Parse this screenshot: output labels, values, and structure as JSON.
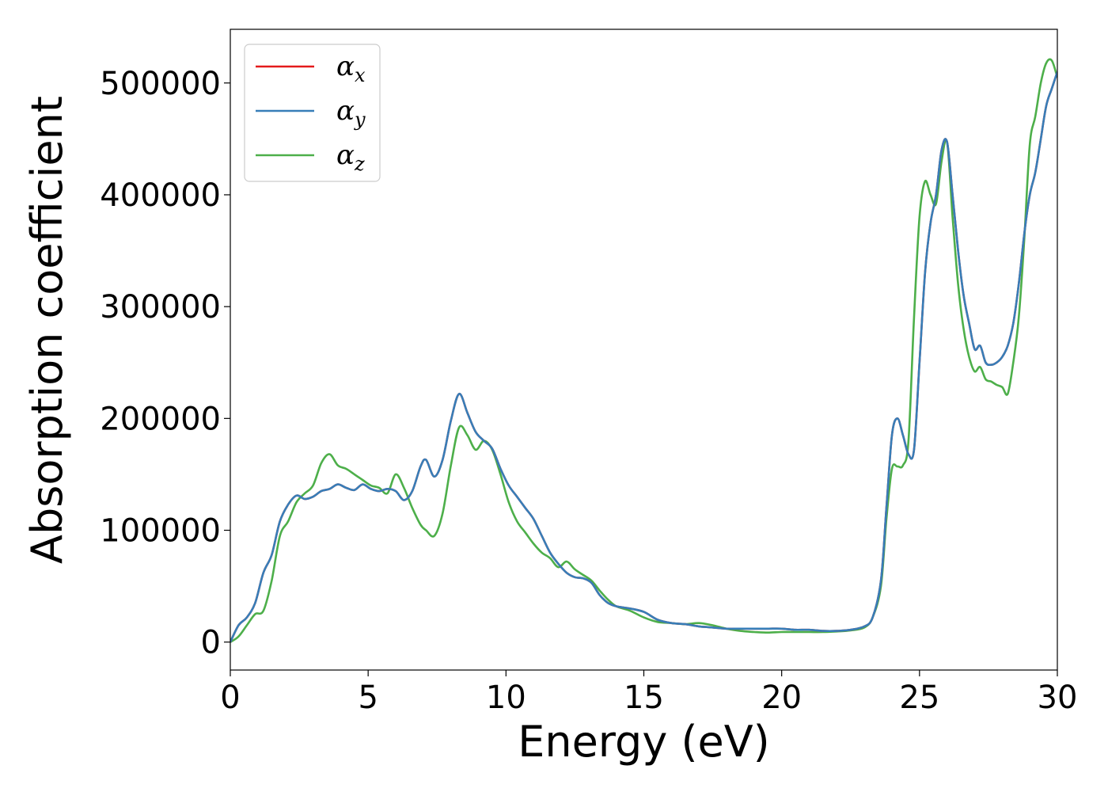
{
  "chart_data": {
    "type": "line",
    "title": "",
    "xlabel": "Energy (eV)",
    "ylabel": "Absorption coefficient",
    "xlim": [
      0,
      30
    ],
    "ylim": [
      -25000,
      548000
    ],
    "xticks": [
      0,
      5,
      10,
      15,
      20,
      25,
      30
    ],
    "yticks": [
      0,
      100000,
      200000,
      300000,
      400000,
      500000
    ],
    "grid": false,
    "legend_position": "top-left",
    "series": [
      {
        "name": "α",
        "subscript": "x",
        "color": "#e41a1c",
        "x": [
          0,
          0.3,
          0.6,
          0.9,
          1.2,
          1.5,
          1.8,
          2.1,
          2.4,
          2.7,
          3.0,
          3.3,
          3.6,
          3.9,
          4.2,
          4.5,
          4.8,
          5.1,
          5.4,
          5.7,
          6.0,
          6.3,
          6.6,
          6.9,
          7.1,
          7.4,
          7.7,
          8.0,
          8.3,
          8.6,
          8.9,
          9.2,
          9.5,
          9.8,
          10.1,
          10.4,
          10.7,
          11.0,
          11.3,
          11.6,
          11.9,
          12.2,
          12.5,
          12.8,
          13.1,
          13.4,
          13.7,
          14.0,
          14.5,
          15.0,
          15.5,
          16.0,
          16.5,
          17.0,
          17.5,
          18.0,
          18.5,
          19.0,
          19.5,
          20.0,
          20.5,
          21.0,
          21.5,
          22.0,
          22.5,
          23.0,
          23.3,
          23.6,
          23.8,
          24.0,
          24.2,
          24.4,
          24.6,
          24.8,
          25.0,
          25.2,
          25.4,
          25.6,
          25.8,
          26.0,
          26.2,
          26.4,
          26.6,
          26.8,
          27.0,
          27.2,
          27.4,
          27.6,
          27.8,
          28.0,
          28.2,
          28.4,
          28.6,
          28.8,
          29.0,
          29.2,
          29.4,
          29.6,
          29.8,
          30.0
        ],
        "y": [
          0,
          15000,
          22000,
          35000,
          62000,
          78000,
          108000,
          123000,
          131000,
          128000,
          130000,
          135000,
          137000,
          141000,
          138000,
          136000,
          141000,
          137000,
          135000,
          137000,
          135000,
          127000,
          135000,
          157000,
          163000,
          148000,
          163000,
          198000,
          222000,
          205000,
          188000,
          180000,
          173000,
          155000,
          140000,
          130000,
          120000,
          110000,
          95000,
          80000,
          70000,
          62000,
          58000,
          57000,
          53000,
          42000,
          35000,
          32000,
          30000,
          27000,
          20000,
          17000,
          16000,
          14000,
          13000,
          12000,
          12000,
          12000,
          12000,
          12000,
          11000,
          11000,
          10000,
          10000,
          11000,
          14000,
          22000,
          55000,
          120000,
          185000,
          200000,
          185000,
          168000,
          172000,
          250000,
          330000,
          375000,
          400000,
          440000,
          447000,
          400000,
          350000,
          310000,
          285000,
          262000,
          265000,
          250000,
          248000,
          250000,
          255000,
          265000,
          285000,
          320000,
          365000,
          400000,
          420000,
          450000,
          480000,
          495000,
          510000
        ]
      },
      {
        "name": "α",
        "subscript": "y",
        "color": "#377eb8",
        "x": [
          0,
          0.3,
          0.6,
          0.9,
          1.2,
          1.5,
          1.8,
          2.1,
          2.4,
          2.7,
          3.0,
          3.3,
          3.6,
          3.9,
          4.2,
          4.5,
          4.8,
          5.1,
          5.4,
          5.7,
          6.0,
          6.3,
          6.6,
          6.9,
          7.1,
          7.4,
          7.7,
          8.0,
          8.3,
          8.6,
          8.9,
          9.2,
          9.5,
          9.8,
          10.1,
          10.4,
          10.7,
          11.0,
          11.3,
          11.6,
          11.9,
          12.2,
          12.5,
          12.8,
          13.1,
          13.4,
          13.7,
          14.0,
          14.5,
          15.0,
          15.5,
          16.0,
          16.5,
          17.0,
          17.5,
          18.0,
          18.5,
          19.0,
          19.5,
          20.0,
          20.5,
          21.0,
          21.5,
          22.0,
          22.5,
          23.0,
          23.3,
          23.6,
          23.8,
          24.0,
          24.2,
          24.4,
          24.6,
          24.8,
          25.0,
          25.2,
          25.4,
          25.6,
          25.8,
          26.0,
          26.2,
          26.4,
          26.6,
          26.8,
          27.0,
          27.2,
          27.4,
          27.6,
          27.8,
          28.0,
          28.2,
          28.4,
          28.6,
          28.8,
          29.0,
          29.2,
          29.4,
          29.6,
          29.8,
          30.0
        ],
        "y": [
          0,
          15000,
          22000,
          35000,
          62000,
          78000,
          108000,
          123000,
          131000,
          128000,
          130000,
          135000,
          137000,
          141000,
          138000,
          136000,
          141000,
          137000,
          135000,
          137000,
          135000,
          127000,
          135000,
          157000,
          163000,
          148000,
          163000,
          198000,
          222000,
          205000,
          188000,
          180000,
          173000,
          155000,
          140000,
          130000,
          120000,
          110000,
          95000,
          80000,
          70000,
          62000,
          58000,
          57000,
          53000,
          42000,
          35000,
          32000,
          30000,
          27000,
          20000,
          17000,
          16000,
          14000,
          13000,
          12000,
          12000,
          12000,
          12000,
          12000,
          11000,
          11000,
          10000,
          10000,
          11000,
          14000,
          22000,
          55000,
          120000,
          185000,
          200000,
          185000,
          168000,
          172000,
          250000,
          330000,
          375000,
          400000,
          440000,
          447000,
          400000,
          350000,
          310000,
          285000,
          262000,
          265000,
          250000,
          248000,
          250000,
          255000,
          265000,
          285000,
          320000,
          365000,
          400000,
          420000,
          450000,
          480000,
          495000,
          510000
        ]
      },
      {
        "name": "α",
        "subscript": "z",
        "color": "#4daf4a",
        "x": [
          0,
          0.3,
          0.6,
          0.9,
          1.2,
          1.5,
          1.8,
          2.1,
          2.4,
          2.7,
          3.0,
          3.3,
          3.6,
          3.9,
          4.2,
          4.5,
          4.8,
          5.1,
          5.4,
          5.7,
          6.0,
          6.3,
          6.6,
          6.9,
          7.1,
          7.4,
          7.7,
          8.0,
          8.3,
          8.6,
          8.9,
          9.2,
          9.5,
          9.8,
          10.1,
          10.4,
          10.7,
          11.0,
          11.3,
          11.6,
          11.9,
          12.2,
          12.5,
          12.8,
          13.1,
          13.4,
          13.7,
          14.0,
          14.5,
          15.0,
          15.5,
          16.0,
          16.5,
          17.0,
          17.5,
          18.0,
          18.5,
          19.0,
          19.5,
          20.0,
          20.5,
          21.0,
          21.5,
          22.0,
          22.5,
          23.0,
          23.3,
          23.6,
          23.8,
          24.0,
          24.2,
          24.4,
          24.6,
          24.8,
          25.0,
          25.2,
          25.4,
          25.6,
          25.8,
          26.0,
          26.2,
          26.4,
          26.6,
          26.8,
          27.0,
          27.2,
          27.4,
          27.6,
          27.8,
          28.0,
          28.2,
          28.4,
          28.6,
          28.8,
          29.0,
          29.2,
          29.4,
          29.6,
          29.8,
          30.0
        ],
        "y": [
          0,
          5000,
          15000,
          25000,
          28000,
          55000,
          95000,
          108000,
          125000,
          133000,
          140000,
          160000,
          168000,
          158000,
          155000,
          150000,
          145000,
          140000,
          138000,
          133000,
          150000,
          138000,
          120000,
          105000,
          100000,
          95000,
          115000,
          158000,
          192000,
          185000,
          172000,
          180000,
          172000,
          150000,
          125000,
          108000,
          98000,
          88000,
          80000,
          75000,
          67000,
          72000,
          65000,
          60000,
          55000,
          46000,
          38000,
          32000,
          28000,
          22000,
          18000,
          17000,
          16000,
          17000,
          15000,
          12000,
          10000,
          9000,
          8500,
          9000,
          9000,
          9000,
          9000,
          9500,
          10500,
          13000,
          22000,
          50000,
          110000,
          155000,
          157000,
          158000,
          180000,
          290000,
          380000,
          412000,
          400000,
          392000,
          430000,
          447000,
          380000,
          320000,
          280000,
          255000,
          242000,
          246000,
          235000,
          233000,
          230000,
          228000,
          222000,
          250000,
          290000,
          360000,
          445000,
          470000,
          500000,
          518000,
          520000,
          505000
        ]
      }
    ]
  }
}
